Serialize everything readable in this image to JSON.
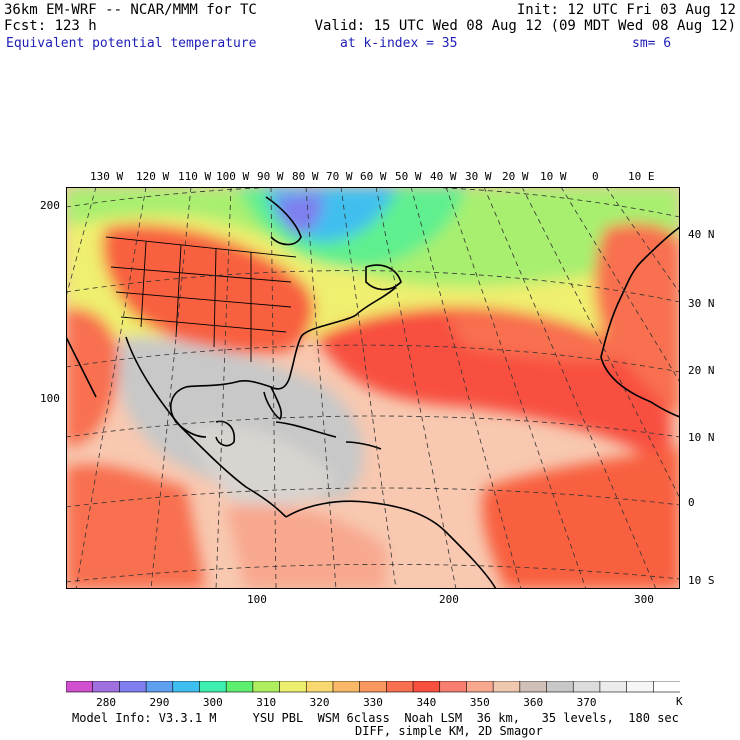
{
  "header": {
    "model": "36km EM-WRF -- NCAR/MMM for TC",
    "init": "Init: 12 UTC Fri 03 Aug 12",
    "forecast": "Fcst: 123 h",
    "valid": "Valid: 15 UTC Wed 08 Aug 12 (09 MDT Wed 08 Aug 12)",
    "field": "Equivalent potential temperature",
    "level": "at k-index = 35",
    "smoothing": "sm= 6"
  },
  "map": {
    "lon_labels": [
      "130 W",
      "120 W",
      "110 W",
      "100 W",
      "90 W",
      "80 W",
      "70 W",
      "60 W",
      "50 W",
      "40 W",
      "30 W",
      "20 W",
      "10 W",
      "0",
      "10 E"
    ],
    "lat_labels": [
      "40 N",
      "30 N",
      "20 N",
      "10 N",
      "0",
      "10 S"
    ],
    "grid_left_labels": [
      "200",
      "100"
    ],
    "grid_bottom_labels": [
      "100",
      "200",
      "300"
    ]
  },
  "colorbar": {
    "colors": [
      "#d050d0",
      "#a070e0",
      "#7f7fef",
      "#5f9fef",
      "#3fbfef",
      "#3fefaf",
      "#5fef6f",
      "#afef5f",
      "#efef6f",
      "#f8d86f",
      "#f8b868",
      "#f8985f",
      "#f8704f",
      "#f8503f",
      "#f87f6f",
      "#f8a88f",
      "#f0c8b0",
      "#d0c0b8",
      "#c8c8c8",
      "#dcdcdc",
      "#ececec",
      "#f6f6f6",
      "#ffffff"
    ],
    "labels": [
      "280",
      "290",
      "300",
      "310",
      "320",
      "330",
      "340",
      "350",
      "360",
      "370"
    ],
    "unit": "K"
  },
  "footer": {
    "line1": "Model Info: V3.3.1 M     YSU PBL  WSM 6class  Noah LSM  36 km,   35 levels,  180 sec",
    "line2": "DIFF, simple KM, 2D Smagor"
  }
}
